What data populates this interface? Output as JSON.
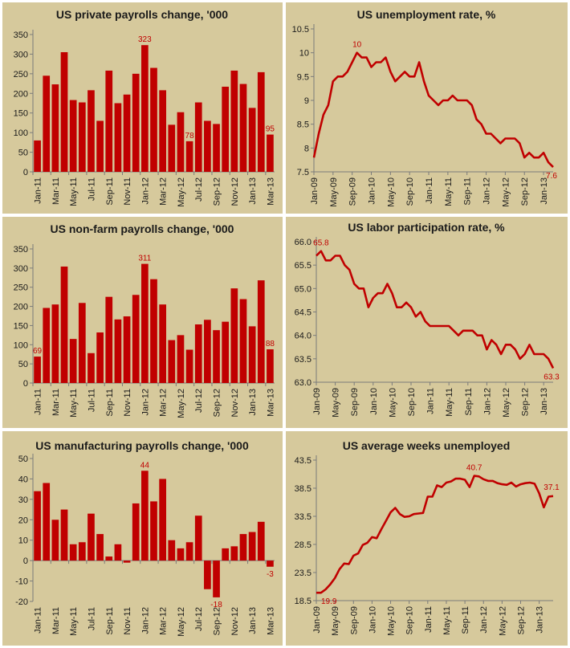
{
  "chart_data": [
    {
      "id": "private",
      "type": "bar",
      "title": "US private payrolls change, '000",
      "xlabel": "",
      "ylabel": "",
      "ylim": [
        0,
        350
      ],
      "yticks": [
        0,
        50,
        100,
        150,
        200,
        250,
        300,
        350
      ],
      "categories": [
        "Jan-11",
        "Feb-11",
        "Mar-11",
        "Apr-11",
        "May-11",
        "Jun-11",
        "Jul-11",
        "Aug-11",
        "Sep-11",
        "Oct-11",
        "Nov-11",
        "Dec-11",
        "Jan-12",
        "Feb-12",
        "Mar-12",
        "Apr-12",
        "May-12",
        "Jun-12",
        "Jul-12",
        "Aug-12",
        "Sep-12",
        "Oct-12",
        "Nov-12",
        "Dec-12",
        "Jan-13",
        "Feb-13",
        "Mar-13"
      ],
      "tick_labels": [
        "Jan-11",
        "Mar-11",
        "May-11",
        "Jul-11",
        "Sep-11",
        "Nov-11",
        "Jan-12",
        "Mar-12",
        "May-12",
        "Jul-12",
        "Sep-12",
        "Nov-12",
        "Jan-13",
        "Mar-13"
      ],
      "values": [
        80,
        245,
        223,
        305,
        183,
        177,
        208,
        130,
        258,
        175,
        197,
        250,
        323,
        265,
        208,
        120,
        152,
        78,
        177,
        130,
        122,
        217,
        258,
        224,
        163,
        254,
        95
      ],
      "annotations": [
        {
          "index": 12,
          "label": "323"
        },
        {
          "index": 17,
          "label": "78"
        },
        {
          "index": 26,
          "label": "95"
        }
      ]
    },
    {
      "id": "unemployment",
      "type": "line",
      "title": "US unemployment rate, %",
      "xlabel": "",
      "ylabel": "",
      "ylim": [
        7.5,
        10.5
      ],
      "yticks": [
        7.5,
        8,
        8.5,
        9,
        9.5,
        10,
        10.5
      ],
      "ytick_labels": [
        "7.5",
        "8",
        "8.5",
        "9",
        "9.5",
        "10",
        "10.5"
      ],
      "x_start": "Jan-09",
      "tick_labels": [
        "Jan-09",
        "May-09",
        "Sep-09",
        "Jan-10",
        "May-10",
        "Sep-10",
        "Jan-11",
        "May-11",
        "Sep-11",
        "Jan-12",
        "May-12",
        "Sep-12",
        "Jan-13"
      ],
      "values": [
        7.8,
        8.3,
        8.7,
        8.9,
        9.4,
        9.5,
        9.5,
        9.6,
        9.8,
        10.0,
        9.9,
        9.9,
        9.7,
        9.8,
        9.8,
        9.9,
        9.6,
        9.4,
        9.5,
        9.6,
        9.5,
        9.5,
        9.8,
        9.4,
        9.1,
        9.0,
        8.9,
        9.0,
        9.0,
        9.1,
        9.0,
        9.0,
        9.0,
        8.9,
        8.6,
        8.5,
        8.3,
        8.3,
        8.2,
        8.1,
        8.2,
        8.2,
        8.2,
        8.1,
        7.8,
        7.9,
        7.8,
        7.8,
        7.9,
        7.7,
        7.6
      ],
      "annotations": [
        {
          "index": 9,
          "label": "10"
        },
        {
          "index": 50,
          "label": "7.6"
        }
      ]
    },
    {
      "id": "nonfarm",
      "type": "bar",
      "title": "US non-farm payrolls change, '000",
      "xlabel": "",
      "ylabel": "",
      "ylim": [
        0,
        350
      ],
      "yticks": [
        0,
        50,
        100,
        150,
        200,
        250,
        300,
        350
      ],
      "categories": [
        "Jan-11",
        "Feb-11",
        "Mar-11",
        "Apr-11",
        "May-11",
        "Jun-11",
        "Jul-11",
        "Aug-11",
        "Sep-11",
        "Oct-11",
        "Nov-11",
        "Dec-11",
        "Jan-12",
        "Feb-12",
        "Mar-12",
        "Apr-12",
        "May-12",
        "Jun-12",
        "Jul-12",
        "Aug-12",
        "Sep-12",
        "Oct-12",
        "Nov-12",
        "Dec-12",
        "Jan-13",
        "Feb-13",
        "Mar-13"
      ],
      "tick_labels": [
        "Jan-11",
        "Mar-11",
        "May-11",
        "Jul-11",
        "Sep-11",
        "Nov-11",
        "Jan-12",
        "Mar-12",
        "May-12",
        "Jul-12",
        "Sep-12",
        "Nov-12",
        "Jan-13",
        "Mar-13"
      ],
      "values": [
        69,
        196,
        205,
        304,
        115,
        209,
        78,
        132,
        225,
        166,
        174,
        230,
        311,
        271,
        205,
        112,
        125,
        87,
        153,
        165,
        138,
        160,
        247,
        219,
        148,
        268,
        88
      ],
      "annotations": [
        {
          "index": 0,
          "label": "69"
        },
        {
          "index": 12,
          "label": "311"
        },
        {
          "index": 26,
          "label": "88"
        }
      ]
    },
    {
      "id": "participation",
      "type": "line",
      "title": "US labor participation rate, %",
      "xlabel": "",
      "ylabel": "",
      "ylim": [
        63.0,
        66.0
      ],
      "yticks": [
        63.0,
        63.5,
        64.0,
        64.5,
        65.0,
        65.5,
        66.0
      ],
      "ytick_labels": [
        "63.0",
        "63.5",
        "64.0",
        "64.5",
        "65.0",
        "65.5",
        "66.0"
      ],
      "x_start": "Jan-09",
      "tick_labels": [
        "Jan-09",
        "May-09",
        "Sep-09",
        "Jan-10",
        "May-10",
        "Sep-10",
        "Jan-11",
        "May-11",
        "Sep-11",
        "Jan-12",
        "May-12",
        "Sep-12",
        "Jan-13"
      ],
      "values": [
        65.7,
        65.8,
        65.6,
        65.6,
        65.7,
        65.7,
        65.5,
        65.4,
        65.1,
        65.0,
        65.0,
        64.6,
        64.8,
        64.9,
        64.9,
        65.1,
        64.9,
        64.6,
        64.6,
        64.7,
        64.6,
        64.4,
        64.5,
        64.3,
        64.2,
        64.2,
        64.2,
        64.2,
        64.2,
        64.1,
        64.0,
        64.1,
        64.1,
        64.1,
        64.0,
        64.0,
        63.7,
        63.9,
        63.8,
        63.6,
        63.8,
        63.8,
        63.7,
        63.5,
        63.6,
        63.8,
        63.6,
        63.6,
        63.6,
        63.5,
        63.3
      ],
      "annotations": [
        {
          "index": 1,
          "label": "65.8"
        },
        {
          "index": 50,
          "label": "63.3"
        }
      ]
    },
    {
      "id": "manufacturing",
      "type": "bar",
      "title": "US manufacturing payrolls change, '000",
      "xlabel": "",
      "ylabel": "",
      "ylim": [
        -20,
        50
      ],
      "yticks": [
        -20,
        -10,
        0,
        10,
        20,
        30,
        40,
        50
      ],
      "categories": [
        "Jan-11",
        "Feb-11",
        "Mar-11",
        "Apr-11",
        "May-11",
        "Jun-11",
        "Jul-11",
        "Aug-11",
        "Sep-11",
        "Oct-11",
        "Nov-11",
        "Dec-11",
        "Jan-12",
        "Feb-12",
        "Mar-12",
        "Apr-12",
        "May-12",
        "Jun-12",
        "Jul-12",
        "Aug-12",
        "Sep-12",
        "Oct-12",
        "Nov-12",
        "Dec-12",
        "Jan-13",
        "Feb-13",
        "Mar-13"
      ],
      "tick_labels": [
        "Jan-11",
        "Mar-11",
        "May-11",
        "Jul-11",
        "Sep-11",
        "Nov-11",
        "Jan-12",
        "Mar-12",
        "May-12",
        "Jul-12",
        "Sep-12",
        "Nov-12",
        "Jan-13",
        "Mar-13"
      ],
      "values": [
        34,
        38,
        20,
        25,
        8,
        9,
        23,
        13,
        2,
        8,
        -1,
        28,
        44,
        29,
        40,
        10,
        6,
        9,
        22,
        -14,
        -18,
        6,
        7,
        13,
        14,
        19,
        -3
      ],
      "annotations": [
        {
          "index": 12,
          "label": "44"
        },
        {
          "index": 20,
          "label": "-18"
        },
        {
          "index": 26,
          "label": "-3"
        }
      ]
    },
    {
      "id": "weeks",
      "type": "line",
      "title": "US average weeks unemployed",
      "xlabel": "",
      "ylabel": "",
      "ylim": [
        18.5,
        43.5
      ],
      "yticks": [
        18.5,
        23.5,
        28.5,
        33.5,
        38.5,
        43.5
      ],
      "ytick_labels": [
        "18.5",
        "23.5",
        "28.5",
        "33.5",
        "38.5",
        "43.5"
      ],
      "x_start": "Jan-09",
      "tick_labels": [
        "Jan-09",
        "May-09",
        "Sep-09",
        "Jan-10",
        "May-10",
        "Sep-10",
        "Jan-11",
        "May-11",
        "Sep-11",
        "Jan-12",
        "May-12",
        "Sep-12",
        "Jan-13"
      ],
      "values": [
        19.9,
        19.9,
        20.5,
        21.4,
        22.5,
        24.1,
        25.1,
        25.0,
        26.5,
        26.9,
        28.4,
        28.8,
        29.8,
        29.6,
        31.2,
        32.7,
        34.2,
        35.0,
        33.9,
        33.4,
        33.5,
        33.9,
        34.0,
        34.1,
        37.0,
        37.0,
        39.0,
        38.7,
        39.5,
        39.7,
        40.2,
        40.2,
        40.0,
        38.7,
        40.7,
        40.6,
        40.1,
        39.8,
        39.8,
        39.4,
        39.2,
        39.1,
        39.5,
        38.8,
        39.2,
        39.4,
        39.5,
        39.3,
        37.6,
        35.1,
        37.0,
        37.1
      ],
      "annotations": [
        {
          "index": 34,
          "label": "40.7"
        },
        {
          "index": 0,
          "label": "19.9"
        },
        {
          "index": 51,
          "label": "37.1"
        }
      ]
    }
  ],
  "colors": {
    "panel_bg": "#d6c99c",
    "series": "#c00000",
    "label": "#c00000",
    "text": "#1a1a1a",
    "axis": "#7a7a7a"
  }
}
